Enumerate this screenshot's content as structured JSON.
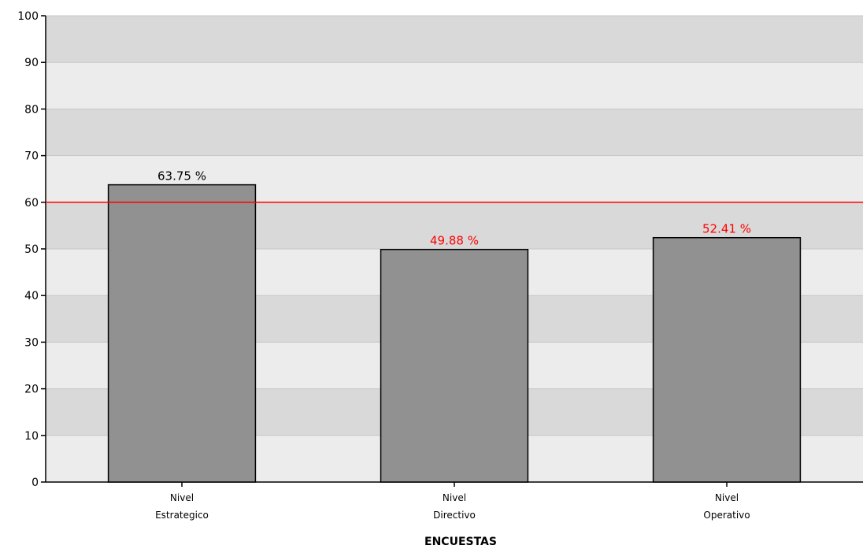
{
  "chart_data": {
    "type": "bar",
    "categories": [
      [
        "Nivel",
        "Estrategico"
      ],
      [
        "Nivel",
        "Directivo"
      ],
      [
        "Nivel",
        "Operativo"
      ]
    ],
    "values": [
      63.75,
      49.88,
      52.41
    ],
    "data_labels": [
      "63.75 %",
      "49.88 %",
      "52.41 %"
    ],
    "data_label_colors": [
      "#000000",
      "#ff0000",
      "#ff0000"
    ],
    "xlabel": "ENCUESTAS",
    "ylabel": "",
    "ylim": [
      0,
      100
    ],
    "yticks": [
      0,
      10,
      20,
      30,
      40,
      50,
      60,
      70,
      80,
      90,
      100
    ],
    "reference_line": {
      "value": 60,
      "color": "#ff0000"
    },
    "grid": true,
    "band_colors": [
      "#ececec",
      "#d9d9d9"
    ],
    "bar_color": "#919191",
    "bar_edge_color": "#000000"
  }
}
